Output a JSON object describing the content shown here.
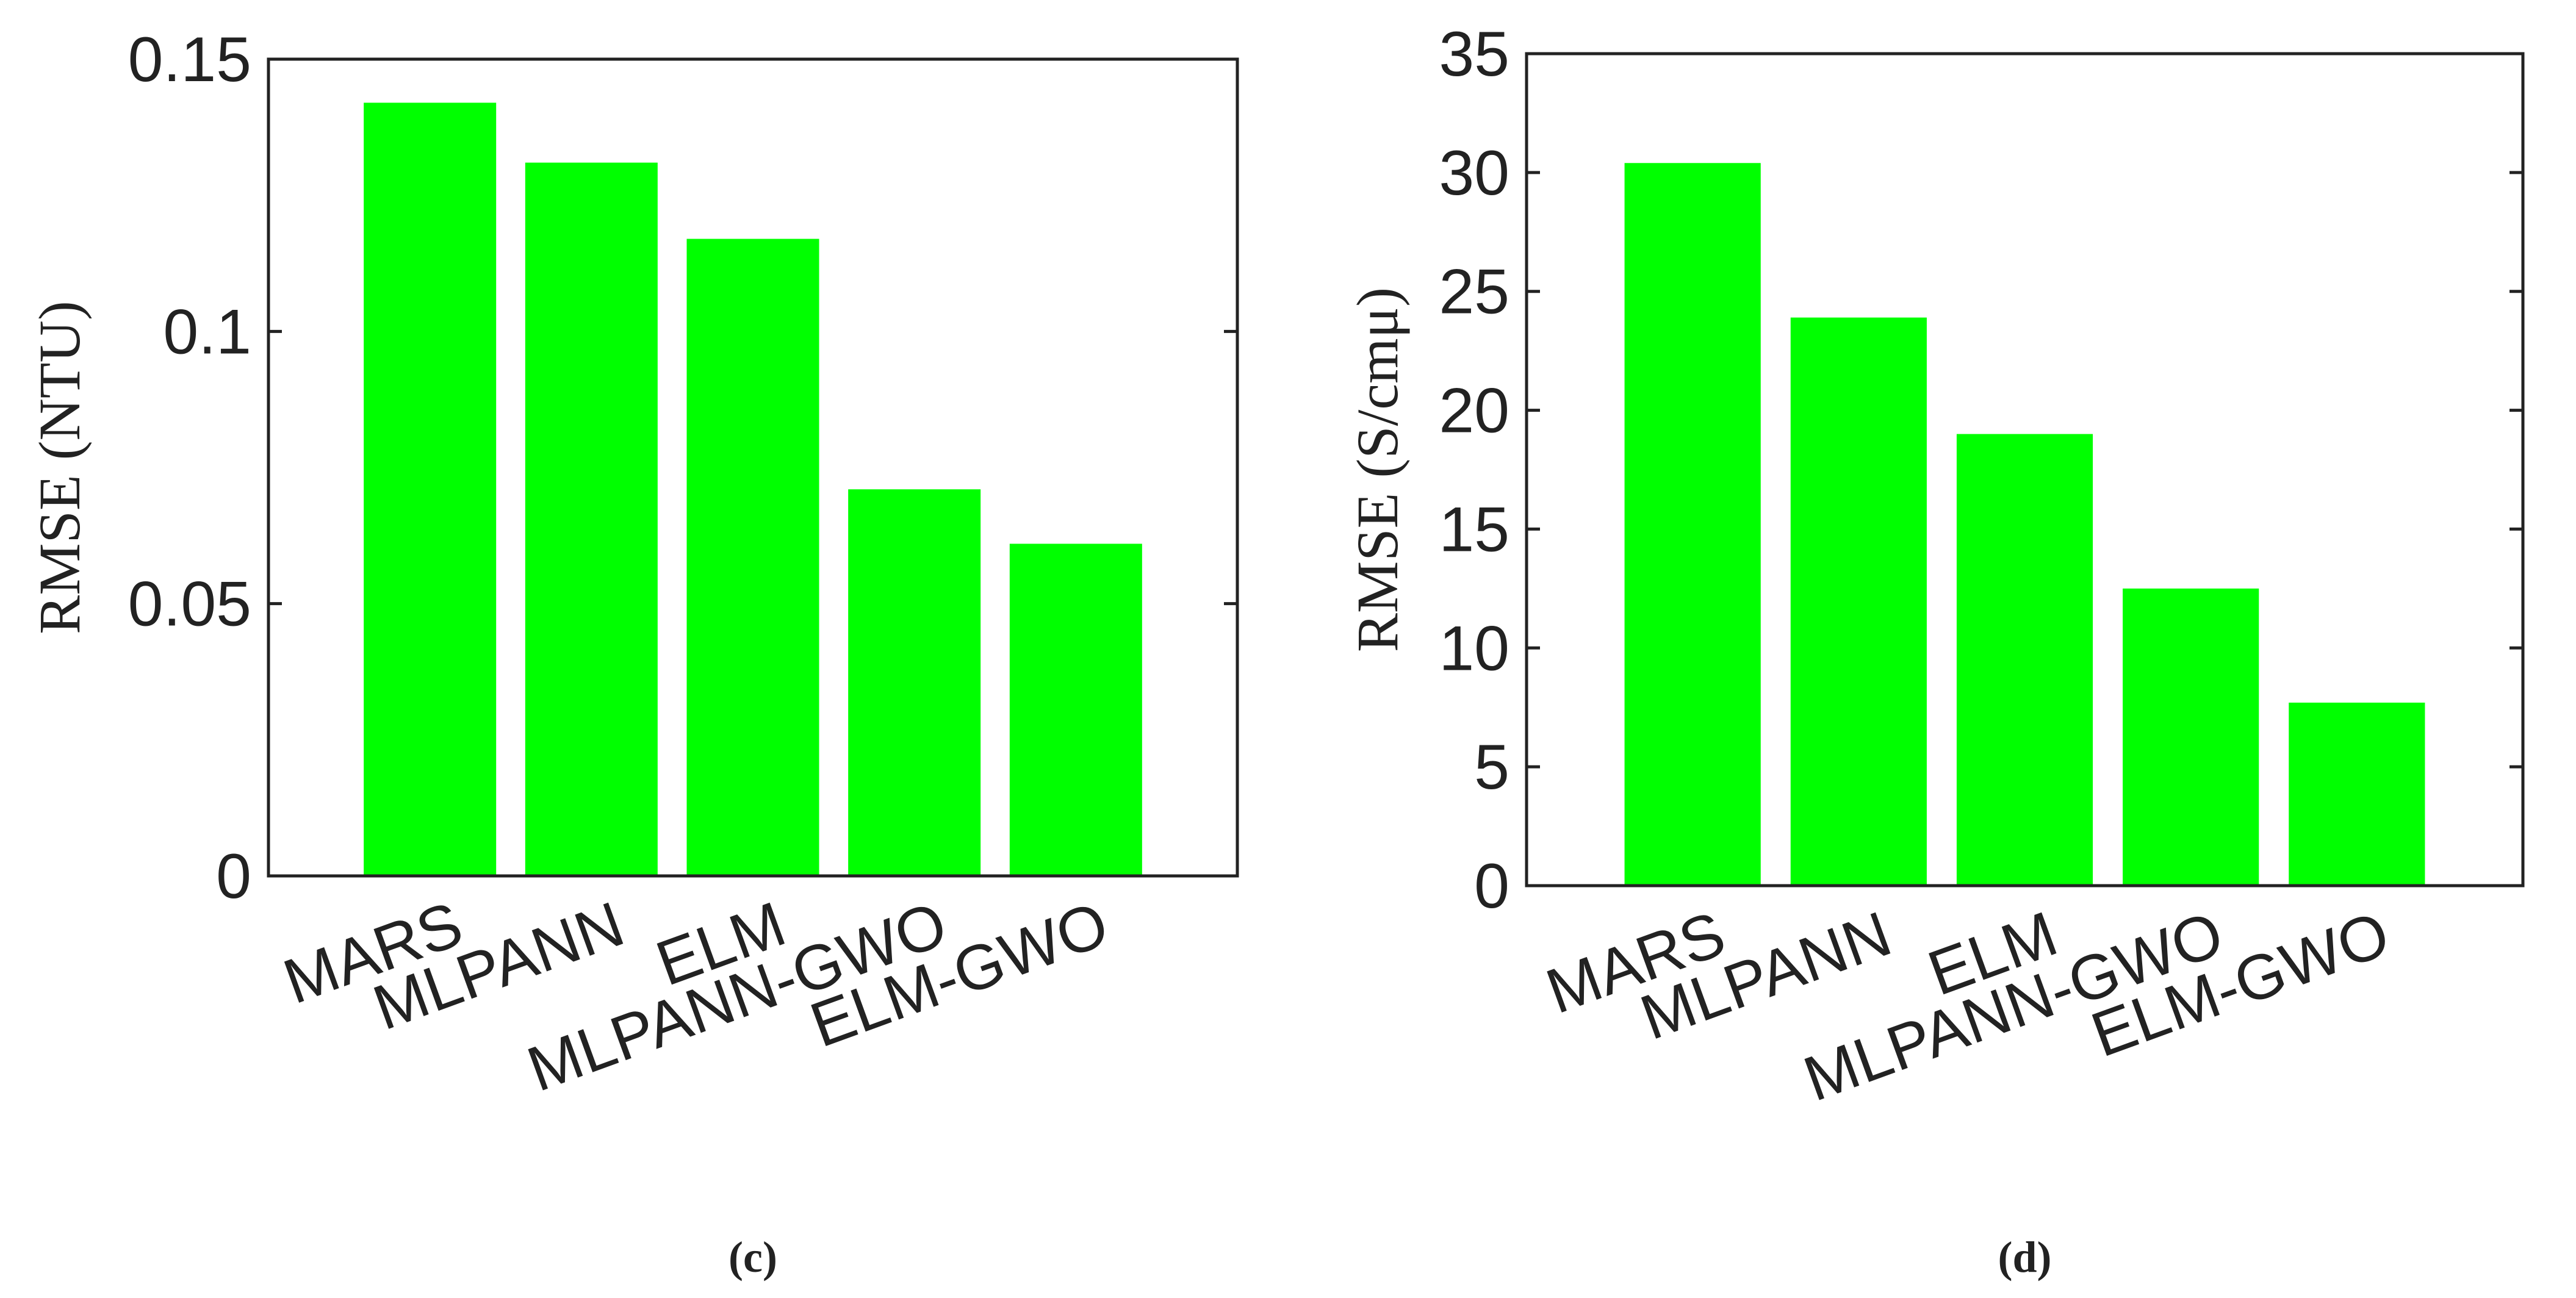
{
  "chart_data": [
    {
      "type": "bar",
      "panel_label": "(c)",
      "categories": [
        "MARS",
        "MLPANN",
        "ELM",
        "MLPANN-GWO",
        "ELM-GWO"
      ],
      "values": [
        0.142,
        0.131,
        0.117,
        0.071,
        0.061
      ],
      "ylabel": "RMSE (NTU)",
      "ylim": [
        0,
        0.15
      ],
      "yticks": [
        0,
        0.05,
        0.1,
        0.15
      ],
      "ytick_labels": [
        "0",
        "0.05",
        "0.1",
        "0.15"
      ],
      "bar_color": "#00ff00",
      "grid": false,
      "box": true
    },
    {
      "type": "bar",
      "panel_label": "(d)",
      "categories": [
        "MARS",
        "MLPANN",
        "ELM",
        "MLPANN-GWO",
        "ELM-GWO"
      ],
      "values": [
        30.4,
        23.9,
        19.0,
        12.5,
        7.7
      ],
      "ylabel": "RMSE (S/cmμ)",
      "ylim": [
        0,
        35
      ],
      "yticks": [
        0,
        5,
        10,
        15,
        20,
        25,
        30,
        35
      ],
      "ytick_labels": [
        "0",
        "5",
        "10",
        "15",
        "20",
        "25",
        "30",
        "35"
      ],
      "bar_color": "#00ff00",
      "grid": false,
      "box": true
    }
  ]
}
